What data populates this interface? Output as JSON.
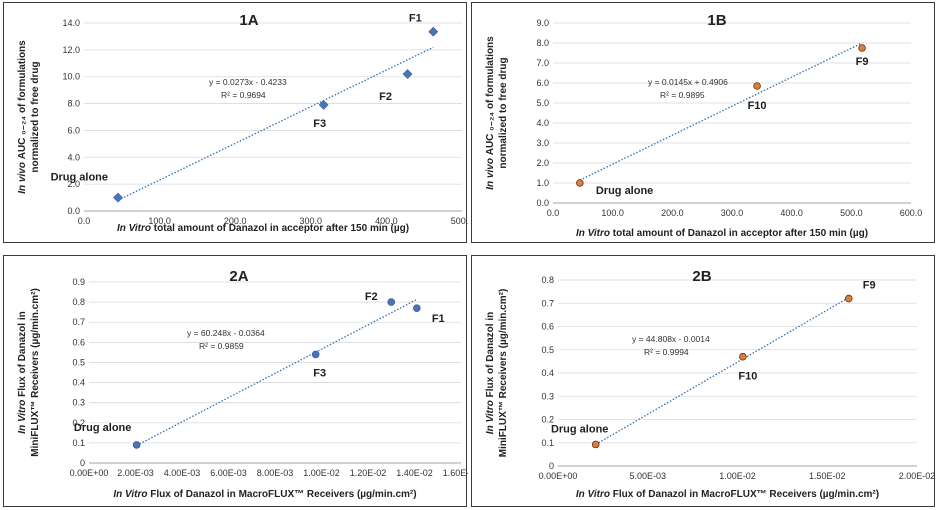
{
  "chart_data": [
    {
      "id": "1A",
      "type": "scatter",
      "title": "1A",
      "xlabel_em": "In Vitro",
      "xlabel": "total amount of Danazol in  acceptor after 150 min (µg)",
      "ylabel1_em": "In vivo",
      "ylabel1": "AUC ₀₋₂₄ of formulations",
      "ylabel2": "normalized to free drug",
      "xlim": [
        0,
        500
      ],
      "xticks": [
        0,
        100,
        200,
        300,
        400,
        500
      ],
      "xtick_labels": [
        "0.0",
        "100.0",
        "200.0",
        "300.0",
        "400.0",
        "500.0"
      ],
      "ylim": [
        0,
        14
      ],
      "yticks": [
        0,
        2,
        4,
        6,
        8,
        10,
        12,
        14
      ],
      "ytick_labels": [
        "0.0",
        "2.0",
        "4.0",
        "6.0",
        "8.0",
        "10.0",
        "12.0",
        "14.0"
      ],
      "marker": "diamond",
      "marker_color": "#4a74b8",
      "points": [
        {
          "x": 45,
          "y": 1.0,
          "label": "Drug alone"
        },
        {
          "x": 317,
          "y": 7.9,
          "label": "F3"
        },
        {
          "x": 428,
          "y": 10.2,
          "label": "F2"
        },
        {
          "x": 462,
          "y": 13.35,
          "label": "F1"
        }
      ],
      "trendline": {
        "slope": 0.0273,
        "intercept": -0.4233,
        "equation": "y = 0.0273x - 0.4233",
        "r2": "R² = 0.9694"
      }
    },
    {
      "id": "1B",
      "type": "scatter",
      "title": "1B",
      "xlabel_em": "In Vitro",
      "xlabel": "total amount of Danazol in  acceptor after 150 min (µg)",
      "ylabel1_em": "In vivo",
      "ylabel1": "AUC ₀₋₂₄ of formulations",
      "ylabel2": "normalized to free drug",
      "xlim": [
        0,
        600
      ],
      "xticks": [
        0,
        100,
        200,
        300,
        400,
        500,
        600
      ],
      "xtick_labels": [
        "0.0",
        "100.0",
        "200.0",
        "300.0",
        "400.0",
        "500.0",
        "600.0"
      ],
      "ylim": [
        0,
        9
      ],
      "yticks": [
        0,
        1,
        2,
        3,
        4,
        5,
        6,
        7,
        8,
        9
      ],
      "ytick_labels": [
        "0.0",
        "1.0",
        "2.0",
        "3.0",
        "4.0",
        "5.0",
        "6.0",
        "7.0",
        "8.0",
        "9.0"
      ],
      "marker": "circle",
      "marker_color": "#e07b39",
      "points": [
        {
          "x": 45,
          "y": 1.0,
          "label": "Drug alone"
        },
        {
          "x": 342,
          "y": 5.85,
          "label": "F10"
        },
        {
          "x": 518,
          "y": 7.75,
          "label": "F9"
        }
      ],
      "trendline": {
        "slope": 0.0145,
        "intercept": 0.4906,
        "equation": "y = 0.0145x + 0.4906",
        "r2": "R² = 0.9895"
      }
    },
    {
      "id": "2A",
      "type": "scatter",
      "title": "2A",
      "xlabel_em": "In Vitro",
      "xlabel": "Flux of Danazol in  MacroFLUX™ Receivers (µg/min.cm²)",
      "ylabel1_em": "In Vitro",
      "ylabel1": "Flux of Danazol in",
      "ylabel2": "MiniFLUX™ Receivers  (µg/min.cm²)",
      "xlim": [
        0,
        0.016
      ],
      "xticks": [
        0,
        0.002,
        0.004,
        0.006,
        0.008,
        0.01,
        0.012,
        0.014,
        0.016
      ],
      "xtick_labels": [
        "0.00E+00",
        "2.00E-03",
        "4.00E-03",
        "6.00E-03",
        "8.00E-03",
        "1.00E-02",
        "1.20E-02",
        "1.40E-02",
        "1.60E-02"
      ],
      "ylim": [
        0,
        0.9
      ],
      "yticks": [
        0,
        0.1,
        0.2,
        0.3,
        0.4,
        0.5,
        0.6,
        0.7,
        0.8,
        0.9
      ],
      "ytick_labels": [
        "0",
        "0.1",
        "0.2",
        "0.3",
        "0.4",
        "0.5",
        "0.6",
        "0.7",
        "0.8",
        "0.9"
      ],
      "marker": "circle",
      "marker_color": "#4a74b8",
      "points": [
        {
          "x": 0.00205,
          "y": 0.09,
          "label": "Drug alone"
        },
        {
          "x": 0.00975,
          "y": 0.54,
          "label": "F3"
        },
        {
          "x": 0.013,
          "y": 0.8,
          "label": "F2"
        },
        {
          "x": 0.0141,
          "y": 0.77,
          "label": "F1"
        }
      ],
      "trendline": {
        "slope": 60.248,
        "intercept": -0.0364,
        "equation": "y = 60.248x - 0.0364",
        "r2": "R² = 0.9859"
      }
    },
    {
      "id": "2B",
      "type": "scatter",
      "title": "2B",
      "xlabel_em": "In Vitro",
      "xlabel": "Flux of Danazol in  MacroFLUX™ Receivers (µg/min.cm²)",
      "ylabel1_em": "In Vitro",
      "ylabel1": "Flux of Danazol in",
      "ylabel2": "MiniFLUX™ Receivers  (µg/min.cm²)",
      "xlim": [
        0,
        0.02
      ],
      "xticks": [
        0,
        0.005,
        0.01,
        0.015,
        0.02
      ],
      "xtick_labels": [
        "0.00E+00",
        "5.00E-03",
        "1.00E-02",
        "1.50E-02",
        "2.00E-02"
      ],
      "ylim": [
        0,
        0.8
      ],
      "yticks": [
        0,
        0.1,
        0.2,
        0.3,
        0.4,
        0.5,
        0.6,
        0.7,
        0.8
      ],
      "ytick_labels": [
        "0",
        "0.1",
        "0.2",
        "0.3",
        "0.4",
        "0.5",
        "0.6",
        "0.7",
        "0.8"
      ],
      "marker": "circle",
      "marker_color": "#e07b39",
      "points": [
        {
          "x": 0.0021,
          "y": 0.093,
          "label": "Drug alone"
        },
        {
          "x": 0.0103,
          "y": 0.47,
          "label": "F10"
        },
        {
          "x": 0.0162,
          "y": 0.72,
          "label": "F9"
        }
      ],
      "trendline": {
        "slope": 44.808,
        "intercept": -0.0014,
        "equation": "y = 44.808x - 0.0014",
        "r2": "R² = 0.9994"
      }
    }
  ]
}
